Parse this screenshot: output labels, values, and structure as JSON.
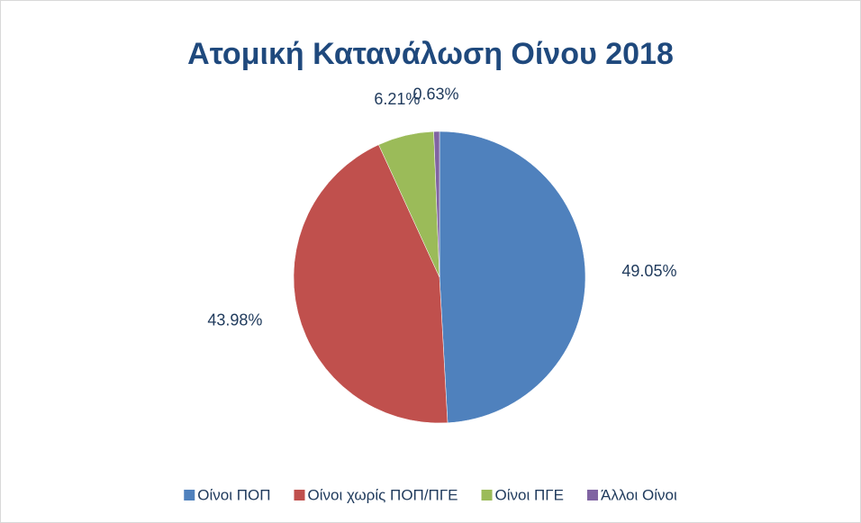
{
  "chart_data": {
    "type": "pie",
    "title": "Ατομική Κατανάλωση Οίνου 2018",
    "categories": [
      "Οίνοι ΠΟΠ",
      "Οίνοι χωρίς ΠΟΠ/ΠΓΕ",
      "Οίνοι ΠΓΕ",
      "Άλλοι Οίνοι"
    ],
    "values": [
      49.05,
      43.98,
      6.21,
      0.63
    ],
    "value_labels": [
      "49.05%",
      "43.98%",
      "6.21%",
      "0.63%"
    ],
    "colors": [
      "#4f81bd",
      "#c0504d",
      "#9bbb59",
      "#8064a2"
    ],
    "legend": "bottom"
  }
}
